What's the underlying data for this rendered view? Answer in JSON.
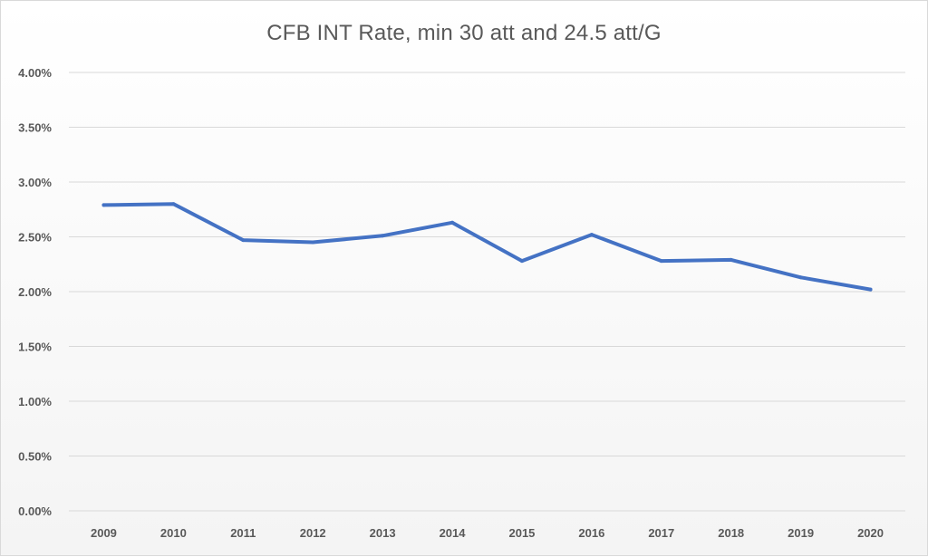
{
  "chart_data": {
    "type": "line",
    "title": "CFB INT Rate, min 30 att and 24.5 att/G",
    "xlabel": "",
    "ylabel": "",
    "categories": [
      "2009",
      "2010",
      "2011",
      "2012",
      "2013",
      "2014",
      "2015",
      "2016",
      "2017",
      "2018",
      "2019",
      "2020"
    ],
    "series": [
      {
        "values": [
          2.79,
          2.8,
          2.47,
          2.45,
          2.51,
          2.63,
          2.28,
          2.52,
          2.28,
          2.29,
          2.13,
          2.02
        ]
      }
    ],
    "ylim": [
      0,
      4
    ],
    "ytick_labels": [
      "0.00%",
      "0.50%",
      "1.00%",
      "1.50%",
      "2.00%",
      "2.50%",
      "3.00%",
      "3.50%",
      "4.00%"
    ],
    "grid": true,
    "legend": "none",
    "colors": {
      "line": "#4472c4",
      "grid": "#d9d9d9",
      "text": "#595959"
    }
  }
}
